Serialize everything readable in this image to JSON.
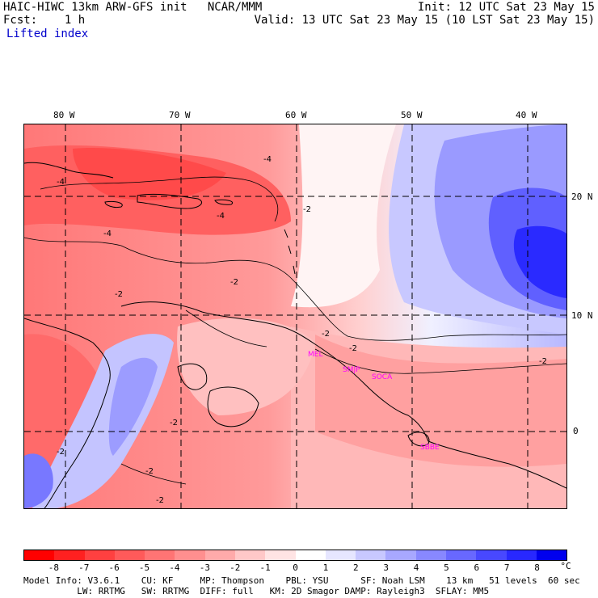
{
  "header": {
    "title_left": "HAIC-HIWC 13km ARW-GFS init   NCAR/MMM",
    "fcst_left": "Fcst:    1 h",
    "init_right": "Init: 12 UTC Sat 23 May 15",
    "valid_right": "Valid: 13 UTC Sat 23 May 15 (10 LST Sat 23 May 15)",
    "field_name": "Lifted index"
  },
  "map": {
    "lon_labels": [
      "80 W",
      "70 W",
      "60 W",
      "50 W",
      "40 W"
    ],
    "lat_labels": [
      "20 N",
      "10 N",
      "0"
    ],
    "contour_labels": [
      "-4",
      "-4",
      "-4",
      "-4",
      "-2",
      "-2",
      "-2",
      "-2",
      "-2",
      "-2",
      "-2",
      "-2",
      "-2",
      "-2"
    ],
    "stations": [
      "MEL",
      "SMJP",
      "SOCA",
      "SBBE"
    ],
    "colors": {
      "strong_stable": "#0000ee",
      "neutral": "#ffffff",
      "strong_unstable": "#ff2020",
      "station": "#ff00ff"
    }
  },
  "colorbar": {
    "levels": [
      "-8",
      "-7",
      "-6",
      "-5",
      "-4",
      "-3",
      "-2",
      "-1",
      "0",
      "1",
      "2",
      "3",
      "4",
      "5",
      "6",
      "7",
      "8"
    ],
    "unit": "°C",
    "colors": [
      "#ff0000",
      "#ff2020",
      "#ff4040",
      "#ff5a5a",
      "#ff7474",
      "#ff8f8f",
      "#ffaaaa",
      "#ffc8c8",
      "#ffe4e4",
      "#ffffff",
      "#e6e6ff",
      "#c8c8ff",
      "#a8a8ff",
      "#8888ff",
      "#6868ff",
      "#4848ff",
      "#2828ff",
      "#0000ee"
    ]
  },
  "footer": {
    "line1": "Model Info: V3.6.1    CU: KF     MP: Thompson    PBL: YSU      SF: Noah LSM    13 km   51 levels  60 sec",
    "line2": "          LW: RRTMG   SW: RRTMG  DIFF: full   KM: 2D Smagor DAMP: Rayleigh3  SFLAY: MM5"
  }
}
